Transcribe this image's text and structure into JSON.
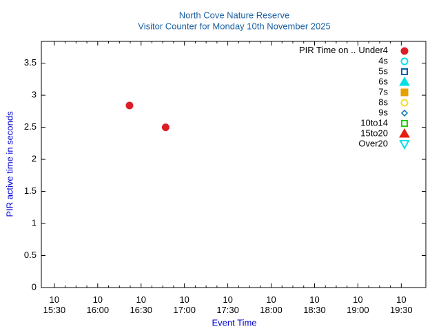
{
  "chart_data": {
    "type": "scatter",
    "title": "North Cove Nature Reserve",
    "subtitle": "Visitor Counter for Monday 10th November 2025",
    "x_label": "Event Time",
    "y_label": "PIR active time in seconds",
    "legend_title": "PIR Time on ..",
    "legend": "top right",
    "x": [
      "10 16:22",
      "10 16:47"
    ],
    "xlim": [
      "10 15:21",
      "10 19:47"
    ],
    "xticks": [
      {
        "value": "10 15:30",
        "label": "10\n15:30"
      },
      {
        "value": "10 16:00",
        "label": "10\n16:00"
      },
      {
        "value": "10 16:30",
        "label": "10\n16:30"
      },
      {
        "value": "10 17:00",
        "label": "10\n17:00"
      },
      {
        "value": "10 17:30",
        "label": "10\n17:30"
      },
      {
        "value": "10 18:00",
        "label": "10\n18:00"
      },
      {
        "value": "10 18:30",
        "label": "10\n18:30"
      },
      {
        "value": "10 19:00",
        "label": "10\n19:00"
      },
      {
        "value": "10 19:30",
        "label": "10\n19:30"
      }
    ],
    "ylim": [
      0,
      3.84
    ],
    "yticks": [
      0,
      0.5,
      1,
      1.5,
      2,
      2.5,
      3,
      3.5
    ],
    "series": [
      {
        "name": "Under4",
        "color": "#dc1e28",
        "marker": "circle-filled",
        "values": [
          2.84,
          2.5
        ]
      },
      {
        "name": "4s",
        "color": "#00e0e8",
        "marker": "circle-open",
        "values": [
          null,
          null
        ]
      },
      {
        "name": "5s",
        "color": "#0060ad",
        "marker": "square-open",
        "values": [
          null,
          null
        ]
      },
      {
        "name": "6s",
        "color": "#00e0e8",
        "marker": "triangle-filled",
        "values": [
          null,
          null
        ]
      },
      {
        "name": "7s",
        "color": "#e69f00",
        "marker": "square-filled",
        "values": [
          null,
          null
        ]
      },
      {
        "name": "8s",
        "color": "#f0e020",
        "marker": "circle-open",
        "values": [
          null,
          null
        ]
      },
      {
        "name": "9s",
        "color": "#0072b2",
        "marker": "diamond-open",
        "values": [
          null,
          null
        ]
      },
      {
        "name": "10to14",
        "color": "#20d000",
        "marker": "square-open",
        "values": [
          null,
          null
        ]
      },
      {
        "name": "15to20",
        "color": "#e51e10",
        "marker": "triangle-filled",
        "values": [
          null,
          null
        ]
      },
      {
        "name": "Over20",
        "color": "#00e0e8",
        "marker": "triangledown-open",
        "values": [
          null,
          null
        ]
      }
    ]
  }
}
